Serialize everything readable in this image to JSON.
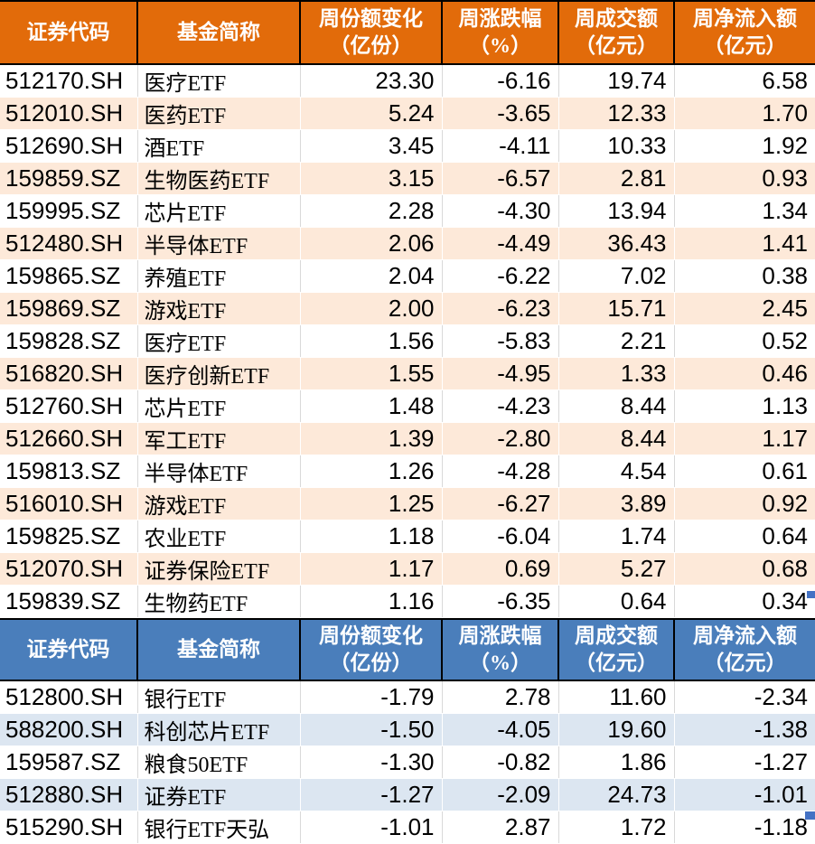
{
  "colors": {
    "inflow_header_bg": "#E26B0A",
    "inflow_row_alt_bg": "#FDE9D9",
    "outflow_header_bg": "#4A7EBB",
    "outflow_row_alt_bg": "#DCE6F1",
    "header_text": "#FFFFFF",
    "header_border": "#000000",
    "selection_handle": "#4472C4"
  },
  "tables": [
    {
      "name": "weekly-share-increase-etfs",
      "theme": "orange",
      "headers": [
        {
          "l1": "证券代码",
          "l2": ""
        },
        {
          "l1": "基金简称",
          "l2": ""
        },
        {
          "l1": "周份额变化",
          "l2": "（亿份）"
        },
        {
          "l1": "周涨跌幅",
          "l2": "（%）"
        },
        {
          "l1": "周成交额",
          "l2": "（亿元）"
        },
        {
          "l1": "周净流入额",
          "l2": "（亿元）"
        }
      ],
      "rows": [
        [
          "512170.SH",
          "医疗ETF",
          "23.30",
          "-6.16",
          "19.74",
          "6.58"
        ],
        [
          "512010.SH",
          "医药ETF",
          "5.24",
          "-3.65",
          "12.33",
          "1.70"
        ],
        [
          "512690.SH",
          "酒ETF",
          "3.45",
          "-4.11",
          "10.33",
          "1.92"
        ],
        [
          "159859.SZ",
          "生物医药ETF",
          "3.15",
          "-6.57",
          "2.81",
          "0.93"
        ],
        [
          "159995.SZ",
          "芯片ETF",
          "2.28",
          "-4.30",
          "13.94",
          "1.34"
        ],
        [
          "512480.SH",
          "半导体ETF",
          "2.06",
          "-4.49",
          "36.43",
          "1.41"
        ],
        [
          "159865.SZ",
          "养殖ETF",
          "2.04",
          "-6.22",
          "7.02",
          "0.38"
        ],
        [
          "159869.SZ",
          "游戏ETF",
          "2.00",
          "-6.23",
          "15.71",
          "2.45"
        ],
        [
          "159828.SZ",
          "医疗ETF",
          "1.56",
          "-5.83",
          "2.21",
          "0.52"
        ],
        [
          "516820.SH",
          "医疗创新ETF",
          "1.55",
          "-4.95",
          "1.33",
          "0.46"
        ],
        [
          "512760.SH",
          "芯片ETF",
          "1.48",
          "-4.23",
          "8.44",
          "1.13"
        ],
        [
          "512660.SH",
          "军工ETF",
          "1.39",
          "-2.80",
          "8.44",
          "1.17"
        ],
        [
          "159813.SZ",
          "半导体ETF",
          "1.26",
          "-4.28",
          "4.54",
          "0.61"
        ],
        [
          "516010.SH",
          "游戏ETF",
          "1.25",
          "-6.27",
          "3.89",
          "0.92"
        ],
        [
          "159825.SZ",
          "农业ETF",
          "1.18",
          "-6.04",
          "1.74",
          "0.64"
        ],
        [
          "512070.SH",
          "证券保险ETF",
          "1.17",
          "0.69",
          "5.27",
          "0.68"
        ],
        [
          "159839.SZ",
          "生物药ETF",
          "1.16",
          "-6.35",
          "0.64",
          "0.34"
        ]
      ]
    },
    {
      "name": "weekly-share-decrease-etfs",
      "theme": "blue",
      "headers": [
        {
          "l1": "证券代码",
          "l2": ""
        },
        {
          "l1": "基金简称",
          "l2": ""
        },
        {
          "l1": "周份额变化",
          "l2": "（亿份）"
        },
        {
          "l1": "周涨跌幅",
          "l2": "（%）"
        },
        {
          "l1": "周成交额",
          "l2": "（亿元）"
        },
        {
          "l1": "周净流入额",
          "l2": "（亿元）"
        }
      ],
      "rows": [
        [
          "512800.SH",
          "银行ETF",
          "-1.79",
          "2.78",
          "11.60",
          "-2.34"
        ],
        [
          "588200.SH",
          "科创芯片ETF",
          "-1.50",
          "-4.05",
          "19.60",
          "-1.38"
        ],
        [
          "159587.SZ",
          "粮食50ETF",
          "-1.30",
          "-0.82",
          "1.86",
          "-1.27"
        ],
        [
          "512880.SH",
          "证券ETF",
          "-1.27",
          "-2.09",
          "24.73",
          "-1.01"
        ],
        [
          "515290.SH",
          "银行ETF天弘",
          "-1.01",
          "2.87",
          "1.72",
          "-1.18"
        ]
      ]
    }
  ]
}
